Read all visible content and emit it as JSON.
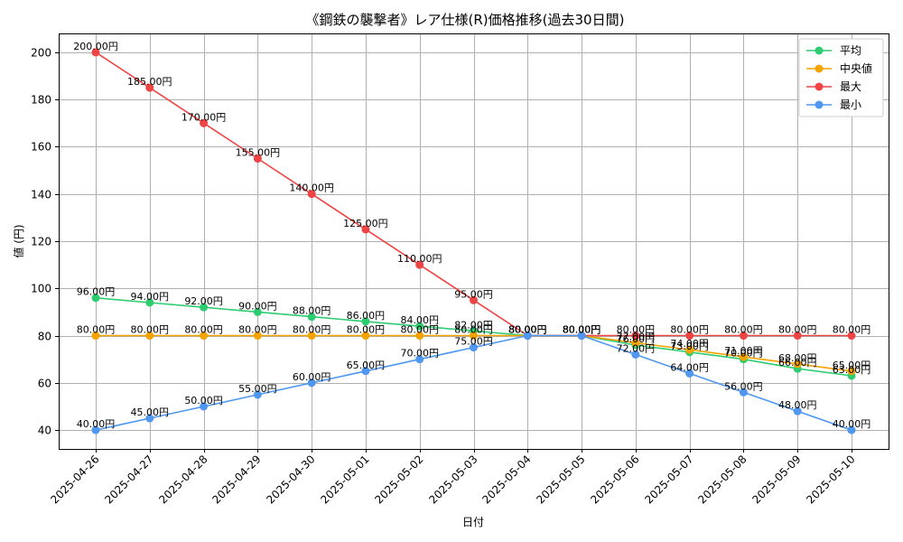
{
  "chart_data": {
    "type": "line",
    "title": "《鋼鉄の襲撃者》レア仕様(R)価格推移(過去30日間)",
    "xlabel": "日付",
    "ylabel": "値 (円)",
    "ylim": [
      32,
      208
    ],
    "yticks": [
      40,
      60,
      80,
      100,
      120,
      140,
      160,
      180,
      200
    ],
    "grid": true,
    "legend_position": "top-right",
    "value_suffix": "円",
    "categories": [
      "2025-04-26",
      "2025-04-27",
      "2025-04-28",
      "2025-04-29",
      "2025-04-30",
      "2025-05-01",
      "2025-05-02",
      "2025-05-03",
      "2025-05-04",
      "2025-05-05",
      "2025-05-06",
      "2025-05-07",
      "2025-05-08",
      "2025-05-09",
      "2025-05-10"
    ],
    "series": [
      {
        "name": "平均",
        "color": "#2ecc71",
        "values": [
          96,
          94,
          92,
          90,
          88,
          86,
          84,
          82,
          80,
          80,
          76,
          73,
          70,
          66,
          63
        ]
      },
      {
        "name": "中央値",
        "color": "#f5a300",
        "values": [
          80,
          80,
          80,
          80,
          80,
          80,
          80,
          80,
          80,
          80,
          77,
          74,
          71,
          68,
          65
        ]
      },
      {
        "name": "最大",
        "color": "#ef4444",
        "values": [
          200,
          185,
          170,
          155,
          140,
          125,
          110,
          95,
          80,
          80,
          80,
          80,
          80,
          80,
          80
        ]
      },
      {
        "name": "最小",
        "color": "#4f97f0",
        "values": [
          40,
          45,
          50,
          55,
          60,
          65,
          70,
          75,
          80,
          80,
          72,
          64,
          56,
          48,
          40
        ]
      }
    ]
  }
}
